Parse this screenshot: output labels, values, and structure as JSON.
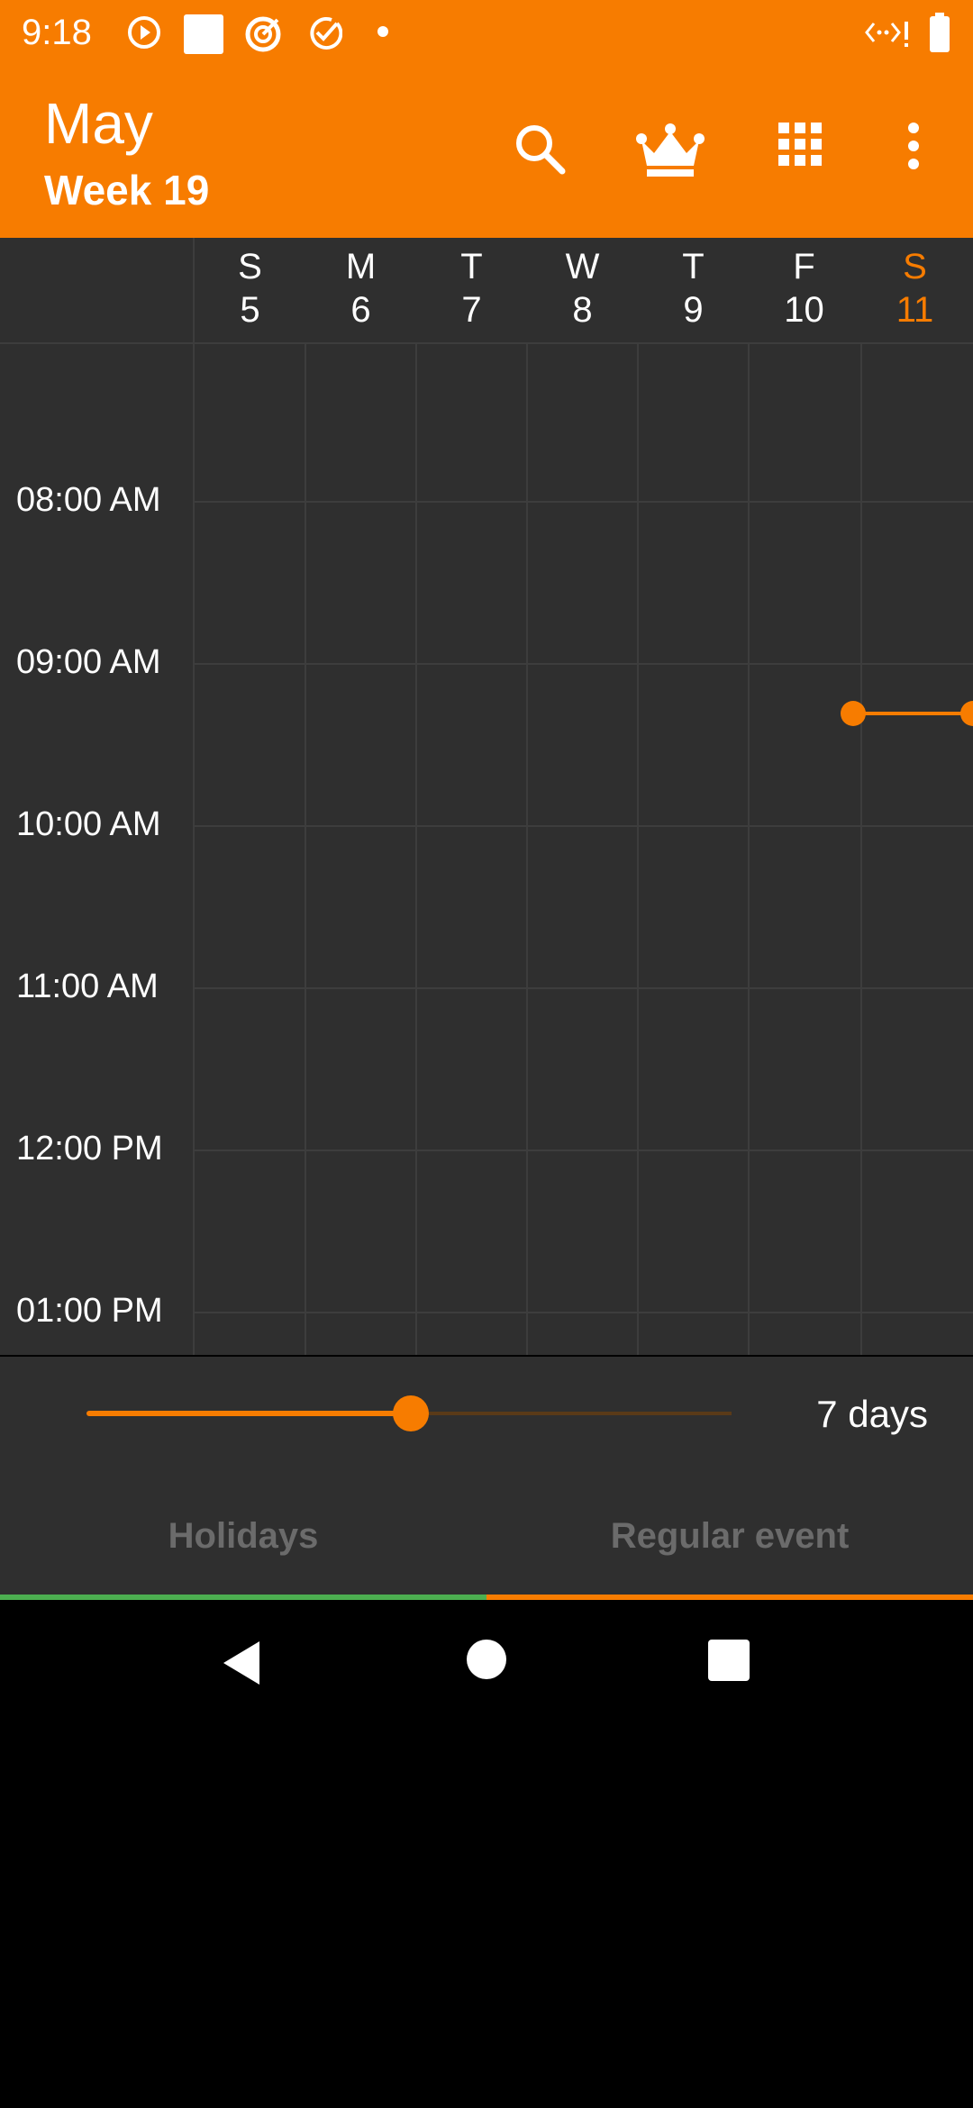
{
  "status_bar": {
    "time": "9:18",
    "icons": [
      "play-circle-icon",
      "square-icon",
      "target-icon",
      "check-circle-icon",
      "dot-icon",
      "network-icon",
      "battery-icon"
    ]
  },
  "app_bar": {
    "month": "May",
    "week": "Week 19",
    "actions": [
      "search-icon",
      "crown-icon",
      "apps-grid-icon",
      "more-vert-icon"
    ]
  },
  "days": [
    {
      "letter": "S",
      "num": "5"
    },
    {
      "letter": "M",
      "num": "6"
    },
    {
      "letter": "T",
      "num": "7"
    },
    {
      "letter": "W",
      "num": "8"
    },
    {
      "letter": "T",
      "num": "9"
    },
    {
      "letter": "F",
      "num": "10"
    },
    {
      "letter": "S",
      "num": "11"
    }
  ],
  "times": [
    "08:00 AM",
    "09:00 AM",
    "10:00 AM",
    "11:00 AM",
    "12:00 PM",
    "01:00 PM"
  ],
  "slider": {
    "label": "7 days",
    "value_fraction": 0.5
  },
  "tabs": [
    {
      "label": "Holidays",
      "color": "#4CAF50"
    },
    {
      "label": "Regular event",
      "color": "#F77C00"
    }
  ],
  "colors": {
    "accent": "#F77C00",
    "background": "#2f2f2f"
  }
}
